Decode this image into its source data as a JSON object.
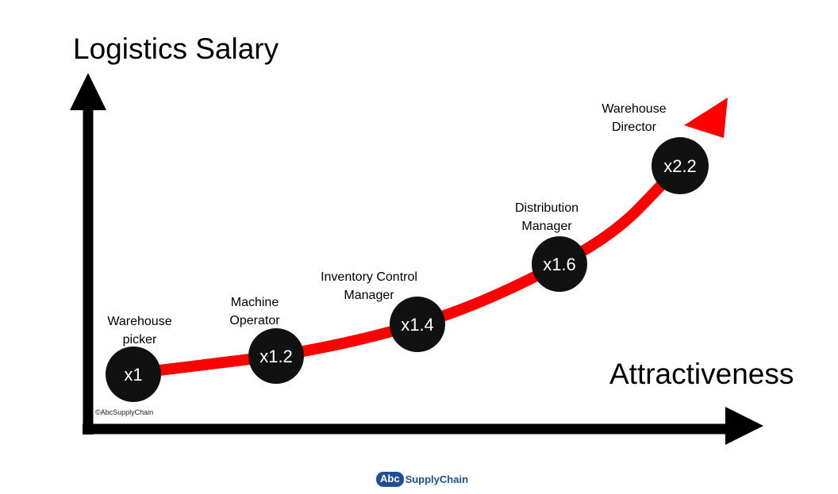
{
  "diagram": {
    "y_axis_title": "Logistics Salary",
    "x_axis_title": "Attractiveness",
    "copyright": "©AbcSupplyChain",
    "curve_color": "#ff0000",
    "axis_color": "#000000",
    "node_color": "#111111",
    "roles": [
      {
        "line1": "Warehouse",
        "line2": "picker",
        "multiplier": "x1"
      },
      {
        "line1": "Machine",
        "line2": "Operator",
        "multiplier": "x1.2"
      },
      {
        "line1": "Inventory Control",
        "line2": "Manager",
        "multiplier": "x1.4"
      },
      {
        "line1": "Distribution",
        "line2": "Manager",
        "multiplier": "x1.6"
      },
      {
        "line1": "Warehouse",
        "line2": "Director",
        "multiplier": "x2.2"
      }
    ]
  },
  "logo": {
    "badge": "Abc",
    "text": "SupplyChain",
    "color": "#1f4e96"
  }
}
